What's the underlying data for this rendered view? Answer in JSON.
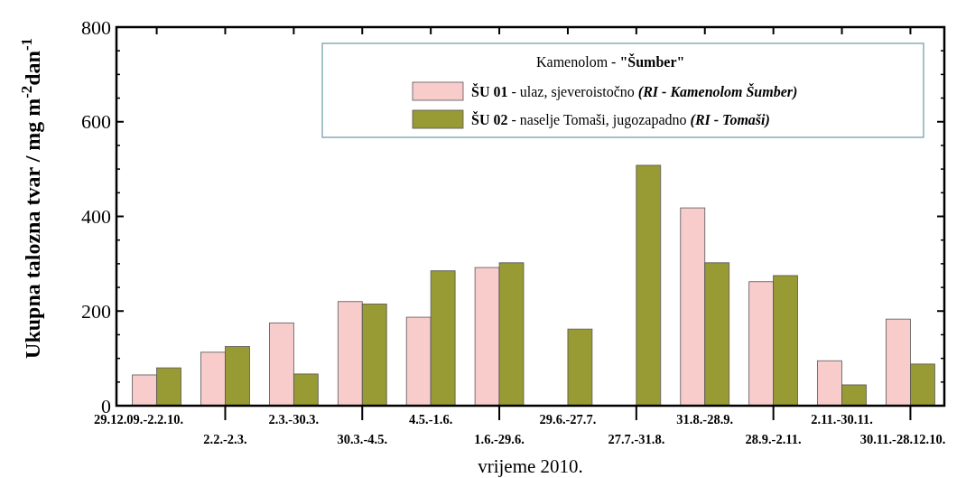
{
  "chart_data": {
    "type": "bar",
    "xlabel": "vrijeme 2010.",
    "ylabel": "Ukupna talozna tvar / mg m$^{-2}$dan$^{-1}$",
    "legend_title": "Kamenolom - \"Šumber\"",
    "categories": [
      "29.12.09.-2.2.10.",
      "2.2.-2.3.",
      "2.3.-30.3.",
      "30.3.-4.5.",
      "4.5.-1.6.",
      "1.6.-29.6.",
      "29.6.-27.7.",
      "27.7.-31.8.",
      "31.8.-28.9.",
      "28.9.-2.11.",
      "2.11.-30.11.",
      "30.11.-28.12.10."
    ],
    "series": [
      {
        "name": "ŠU 01 - ulaz, sjeveroistočno (RI - Kamenolom Šumber)",
        "color": "#f9cccc",
        "values": [
          65,
          113,
          175,
          220,
          187,
          292,
          null,
          null,
          418,
          262,
          95,
          183
        ]
      },
      {
        "name": "ŠU 02 - naselje Tomaši, jugozapadno (RI - Tomaši)",
        "color": "#989a34",
        "values": [
          80,
          125,
          67,
          215,
          285,
          302,
          162,
          508,
          302,
          275,
          44,
          88
        ]
      }
    ],
    "ylim": [
      0,
      800
    ],
    "yticks": [
      0,
      200,
      400,
      600,
      800
    ],
    "legend": "top right"
  }
}
